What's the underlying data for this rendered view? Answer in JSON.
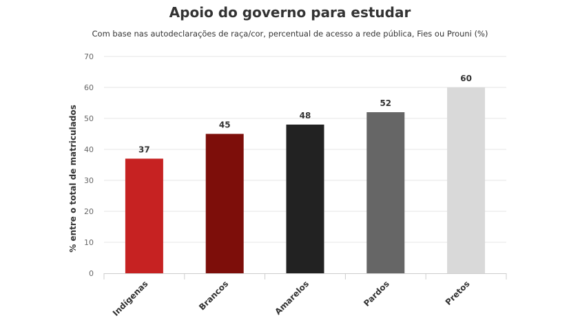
{
  "chart_data": {
    "type": "bar",
    "title": "Apoio do governo para estudar",
    "subtitle": "Com base nas autodeclarações de raça/cor, percentual de acesso a rede pública, Fies ou Prouni (%)",
    "xlabel": "",
    "ylabel": "% entre o total de matriculados",
    "ylim": [
      0,
      70
    ],
    "yticks": [
      0,
      10,
      20,
      30,
      40,
      50,
      60,
      70
    ],
    "grid": true,
    "legend": "none",
    "categories": [
      "Indígenas",
      "Brancos",
      "Amarelos",
      "Pardos",
      "Pretos"
    ],
    "values": [
      37,
      45,
      48,
      52,
      60
    ],
    "colors": [
      "#c62222",
      "#7d0e0a",
      "#222222",
      "#666666",
      "#d9d9d9"
    ]
  }
}
